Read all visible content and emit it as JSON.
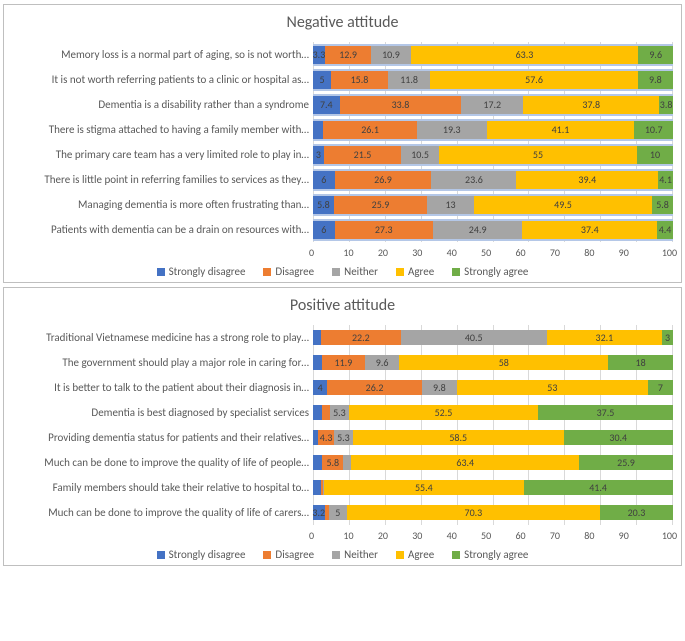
{
  "colors": {
    "strongly_disagree": "#4472c4",
    "disagree": "#ed7d31",
    "neither": "#a5a5a5",
    "agree": "#ffc000",
    "strongly_agree": "#70ad47",
    "grid": "#d9d9d9",
    "text": "#595959",
    "row_band": "#b4c7e7"
  },
  "legend": {
    "strongly_disagree": "Strongly disagree",
    "disagree": "Disagree",
    "neither": "Neither",
    "agree": "Agree",
    "strongly_agree": "Strongly agree"
  },
  "axis": {
    "min": 0,
    "max": 100,
    "step": 10,
    "ticks": [
      "0",
      "10",
      "20",
      "30",
      "40",
      "50",
      "60",
      "70",
      "80",
      "90",
      "100"
    ]
  },
  "negative": {
    "title": "Negative attitude",
    "items": [
      {
        "label": "Memory loss is a normal part of aging, so is not worth…",
        "values": {
          "strongly_disagree": 3.3,
          "disagree": 12.9,
          "neither": 10.9,
          "agree": 63.3,
          "strongly_agree": 9.6
        }
      },
      {
        "label": "It is not worth referring patients to a clinic or hospital as…",
        "values": {
          "strongly_disagree": 5,
          "disagree": 15.8,
          "neither": 11.8,
          "agree": 57.6,
          "strongly_agree": 9.8
        }
      },
      {
        "label": "Dementia is a disability rather than a syndrome",
        "values": {
          "strongly_disagree": 7.4,
          "disagree": 33.8,
          "neither": 17.2,
          "agree": 37.8,
          "strongly_agree": 3.8
        }
      },
      {
        "label": "There is stigma attached to having a family member with…",
        "values": {
          "strongly_disagree": 2.8,
          "disagree": 26.1,
          "neither": 19.3,
          "agree": 41.1,
          "strongly_agree": 10.7
        }
      },
      {
        "label": "The primary care team has a very limited role to play in…",
        "values": {
          "strongly_disagree": 3,
          "disagree": 21.5,
          "neither": 10.5,
          "agree": 55,
          "strongly_agree": 10
        }
      },
      {
        "label": "There is little point in referring families to services as they…",
        "values": {
          "strongly_disagree": 6,
          "disagree": 26.9,
          "neither": 23.6,
          "agree": 39.4,
          "strongly_agree": 4.1
        }
      },
      {
        "label": "Managing dementia is more often frustrating than…",
        "values": {
          "strongly_disagree": 5.8,
          "disagree": 25.9,
          "neither": 13,
          "agree": 49.5,
          "strongly_agree": 5.8
        }
      },
      {
        "label": "Patients with dementia can be a drain on resources with…",
        "values": {
          "strongly_disagree": 6,
          "disagree": 27.3,
          "neither": 24.9,
          "agree": 37.4,
          "strongly_agree": 4.4
        }
      }
    ]
  },
  "positive": {
    "title": "Positive attitude",
    "items": [
      {
        "label": "Traditional Vietnamese medicine has a strong role to play…",
        "values": {
          "strongly_disagree": 2.2,
          "disagree": 22.2,
          "neither": 40.5,
          "agree": 32.1,
          "strongly_agree": 3
        }
      },
      {
        "label": "The government should play a major role in caring for…",
        "values": {
          "strongly_disagree": 2.5,
          "disagree": 11.9,
          "neither": 9.6,
          "agree": 58,
          "strongly_agree": 18
        }
      },
      {
        "label": "It is better to talk to the patient about their diagnosis in…",
        "values": {
          "strongly_disagree": 4,
          "disagree": 26.2,
          "neither": 9.8,
          "agree": 53,
          "strongly_agree": 7
        }
      },
      {
        "label": "Dementia is best diagnosed by specialist services",
        "values": {
          "strongly_disagree": 2.4,
          "disagree": 2.3,
          "neither": 5.3,
          "agree": 52.5,
          "strongly_agree": 37.5
        }
      },
      {
        "label": "Providing dementia status for patients and their relatives…",
        "values": {
          "strongly_disagree": 1.5,
          "disagree": 4.3,
          "neither": 5.3,
          "agree": 58.5,
          "strongly_agree": 30.4
        }
      },
      {
        "label": "Much can be done to improve the quality of life of people…",
        "values": {
          "strongly_disagree": 2.6,
          "disagree": 5.8,
          "neither": 2.2,
          "agree": 63.4,
          "strongly_agree": 25.9
        }
      },
      {
        "label": "Family members should take their relative to hospital to…",
        "values": {
          "strongly_disagree": 2.1,
          "disagree": 0.8,
          "neither": 0.2,
          "agree": 55.4,
          "strongly_agree": 41.4
        }
      },
      {
        "label": "Much can be done to improve the quality of life of carers…",
        "values": {
          "strongly_disagree": 3.2,
          "disagree": 1.2,
          "neither": 5,
          "agree": 70.3,
          "strongly_agree": 20.3
        }
      }
    ]
  }
}
